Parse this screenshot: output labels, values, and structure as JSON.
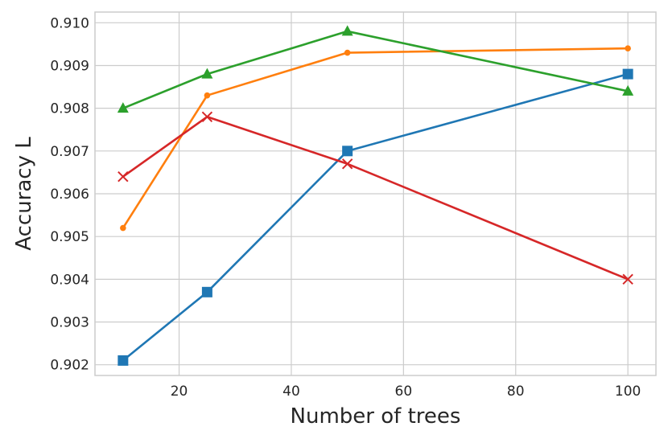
{
  "chart_data": {
    "type": "line",
    "title": "",
    "xlabel": "Number of trees",
    "ylabel": "Accuracy L",
    "xlim": [
      5,
      105
    ],
    "ylim": [
      0.90175,
      0.91025
    ],
    "x_ticks": [
      20,
      40,
      60,
      80,
      100
    ],
    "y_ticks": [
      0.902,
      0.903,
      0.904,
      0.905,
      0.906,
      0.907,
      0.908,
      0.909,
      0.91
    ],
    "x_tick_labels": [
      "20",
      "40",
      "60",
      "80",
      "100"
    ],
    "y_tick_labels": [
      "0.902",
      "0.903",
      "0.904",
      "0.905",
      "0.906",
      "0.907",
      "0.908",
      "0.909",
      "0.910"
    ],
    "grid": true,
    "legend": "none",
    "series": [
      {
        "color": "#1f77b4",
        "marker": "square",
        "x": [
          10,
          25,
          50,
          100
        ],
        "y": [
          0.9021,
          0.9037,
          0.907,
          0.9088
        ]
      },
      {
        "color": "#ff7f0e",
        "marker": "circle",
        "x": [
          10,
          25,
          50,
          100
        ],
        "y": [
          0.9052,
          0.9083,
          0.9093,
          0.9094
        ]
      },
      {
        "color": "#2ca02c",
        "marker": "triangle",
        "x": [
          10,
          25,
          50,
          100
        ],
        "y": [
          0.908,
          0.9088,
          0.9098,
          0.9084
        ]
      },
      {
        "color": "#d62728",
        "marker": "x",
        "x": [
          10,
          25,
          50,
          100
        ],
        "y": [
          0.9064,
          0.9078,
          0.9067,
          0.904
        ]
      }
    ]
  }
}
